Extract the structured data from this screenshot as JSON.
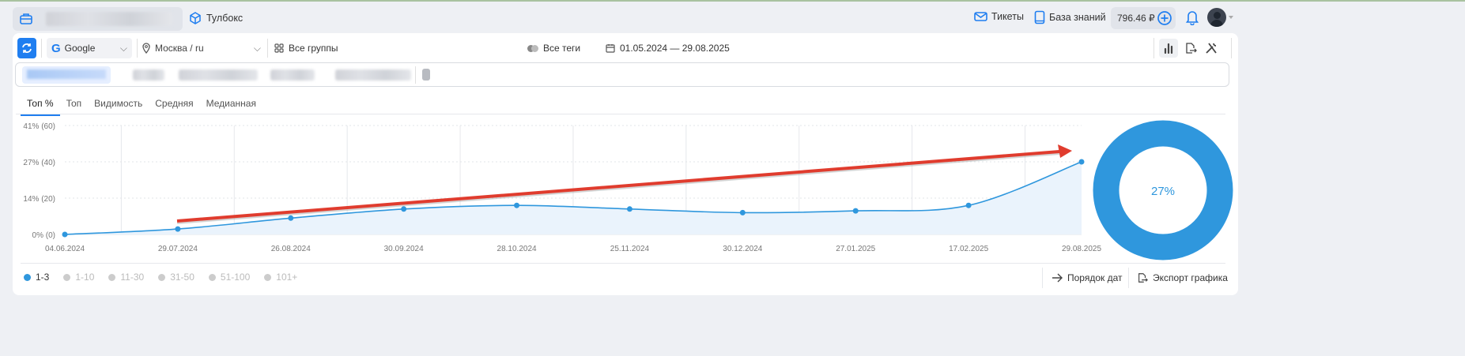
{
  "header": {
    "toolbox": "Тулбокс",
    "tickets": "Тикеты",
    "knowledge_base": "База знаний",
    "balance": "796.46 ₽"
  },
  "filters": {
    "engine": "Google",
    "region": "Москва / ru",
    "groups": "Все группы",
    "tags": "Все теги",
    "date_range": "01.05.2024 — 29.08.2025"
  },
  "tabs": [
    {
      "label": "Топ %"
    },
    {
      "label": "Топ"
    },
    {
      "label": "Видимость"
    },
    {
      "label": "Средняя"
    },
    {
      "label": "Медианная"
    }
  ],
  "chart_data": {
    "type": "line",
    "x": [
      "04.06.2024",
      "29.07.2024",
      "26.08.2024",
      "30.09.2024",
      "28.10.2024",
      "25.11.2024",
      "30.12.2024",
      "27.01.2025",
      "17.02.2025",
      "29.08.2025"
    ],
    "series": [
      {
        "name": "1-3",
        "values": [
          0,
          3,
          9,
          14,
          16,
          14,
          12,
          13,
          16,
          40
        ],
        "color": "#2f97dd"
      }
    ],
    "yticks": [
      {
        "value": 0,
        "label": "0% (0)"
      },
      {
        "value": 20,
        "label": "14% (20)"
      },
      {
        "value": 40,
        "label": "27% (40)"
      },
      {
        "value": 60,
        "label": "41% (60)"
      }
    ],
    "ylim": [
      0,
      60
    ],
    "annotation": "red trend arrow pointing up-right",
    "donut": {
      "label": "27%",
      "value": 27,
      "color": "#2f97dd"
    }
  },
  "legend": [
    {
      "label": "1-3",
      "active": true
    },
    {
      "label": "1-10"
    },
    {
      "label": "11-30"
    },
    {
      "label": "31-50"
    },
    {
      "label": "51-100"
    },
    {
      "label": "101+"
    }
  ],
  "actions": {
    "date_order": "Порядок дат",
    "export": "Экспорт графика"
  }
}
